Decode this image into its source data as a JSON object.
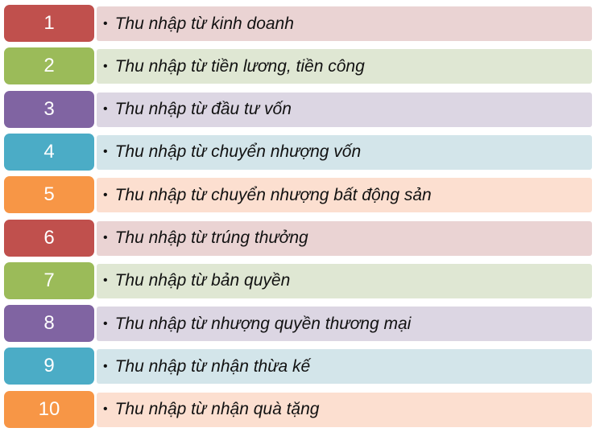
{
  "palette": {
    "red": {
      "dark": "#C0504D",
      "light": "#EAD3D3"
    },
    "green": {
      "dark": "#9BBB59",
      "light": "#DFE7D3"
    },
    "purple": {
      "dark": "#8064A2",
      "light": "#DCD6E3"
    },
    "aqua": {
      "dark": "#4BACC6",
      "light": "#D3E5EA"
    },
    "orange": {
      "dark": "#F79646",
      "light": "#FCDFD0"
    }
  },
  "items": [
    {
      "number": "1",
      "text": "Thu nhập từ kinh doanh",
      "color": "red"
    },
    {
      "number": "2",
      "text": "Thu nhập từ tiền lương, tiền công",
      "color": "green"
    },
    {
      "number": "3",
      "text": "Thu nhập từ đầu tư vốn",
      "color": "purple"
    },
    {
      "number": "4",
      "text": "Thu nhập từ chuyển nhượng vốn",
      "color": "aqua"
    },
    {
      "number": "5",
      "text": "Thu nhập từ chuyển nhượng bất động sản",
      "color": "orange"
    },
    {
      "number": "6",
      "text": "Thu nhập từ trúng thưởng",
      "color": "red"
    },
    {
      "number": "7",
      "text": "Thu nhập từ bản quyền",
      "color": "green"
    },
    {
      "number": "8",
      "text": "Thu nhập từ nhượng quyền thương mại",
      "color": "purple"
    },
    {
      "number": "9",
      "text": "Thu nhập từ nhận thừa kế",
      "color": "aqua"
    },
    {
      "number": "10",
      "text": "Thu nhập từ nhận quà tặng",
      "color": "orange"
    }
  ]
}
